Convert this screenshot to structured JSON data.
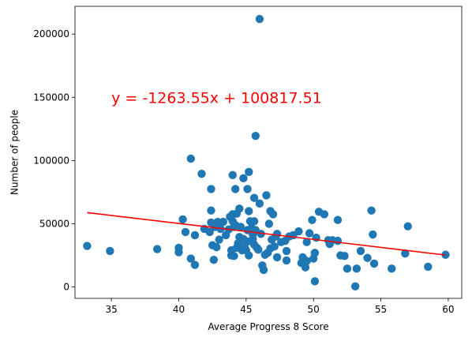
{
  "chart_data": {
    "type": "scatter",
    "xlabel": "Average Progress 8 Score",
    "ylabel": "Number of people",
    "xlim": [
      32.3,
      61.0
    ],
    "ylim": [
      -9000,
      222000
    ],
    "xticks": [
      35,
      40,
      45,
      50,
      55,
      60
    ],
    "yticks": [
      0,
      50000,
      100000,
      150000,
      200000
    ],
    "grid": false,
    "point_color": "#1f77b4",
    "regression": {
      "label": "y = -1263.55x + 100817.51",
      "slope": -1263.55,
      "intercept": 100817.51,
      "x_start": 33.2,
      "x_end": 59.8,
      "color": "#ff0000",
      "label_x": 35,
      "label_y": 150000
    },
    "points": [
      [
        33.2,
        32500
      ],
      [
        34.9,
        28500
      ],
      [
        38.4,
        30000
      ],
      [
        40.0,
        31000
      ],
      [
        40.0,
        27500
      ],
      [
        40.3,
        53500
      ],
      [
        40.5,
        43500
      ],
      [
        40.9,
        22500
      ],
      [
        40.9,
        101500
      ],
      [
        41.2,
        17500
      ],
      [
        41.2,
        41000
      ],
      [
        41.7,
        89500
      ],
      [
        41.9,
        46000
      ],
      [
        42.3,
        43500
      ],
      [
        42.4,
        51000
      ],
      [
        42.4,
        60500
      ],
      [
        42.4,
        77500
      ],
      [
        42.5,
        33000
      ],
      [
        42.6,
        21500
      ],
      [
        42.7,
        47500
      ],
      [
        42.8,
        31500
      ],
      [
        42.9,
        51500
      ],
      [
        43.0,
        37500
      ],
      [
        43.1,
        46000
      ],
      [
        43.3,
        51500
      ],
      [
        43.5,
        41000
      ],
      [
        43.7,
        45500
      ],
      [
        43.8,
        55500
      ],
      [
        43.9,
        29000
      ],
      [
        43.9,
        25000
      ],
      [
        44.0,
        88500
      ],
      [
        44.0,
        57500
      ],
      [
        44.0,
        52000
      ],
      [
        44.1,
        47500
      ],
      [
        44.1,
        24500
      ],
      [
        44.2,
        77500
      ],
      [
        44.2,
        49000
      ],
      [
        44.3,
        31000
      ],
      [
        44.3,
        58000
      ],
      [
        44.4,
        34500
      ],
      [
        44.5,
        62000
      ],
      [
        44.5,
        39500
      ],
      [
        44.6,
        36500
      ],
      [
        44.6,
        47500
      ],
      [
        44.7,
        29000
      ],
      [
        44.8,
        86000
      ],
      [
        44.8,
        38000
      ],
      [
        44.9,
        31000
      ],
      [
        45.0,
        29000
      ],
      [
        45.1,
        45000
      ],
      [
        45.1,
        36000
      ],
      [
        45.1,
        77500
      ],
      [
        45.2,
        91000
      ],
      [
        45.2,
        60000
      ],
      [
        45.2,
        25000
      ],
      [
        45.3,
        52000
      ],
      [
        45.4,
        46500
      ],
      [
        45.5,
        41500
      ],
      [
        45.5,
        38000
      ],
      [
        45.6,
        33500
      ],
      [
        45.6,
        52000
      ],
      [
        45.6,
        70500
      ],
      [
        45.7,
        45000
      ],
      [
        45.7,
        119500
      ],
      [
        45.8,
        31000
      ],
      [
        45.9,
        29500
      ],
      [
        46.0,
        212000
      ],
      [
        46.0,
        66000
      ],
      [
        46.1,
        42000
      ],
      [
        46.2,
        17000
      ],
      [
        46.3,
        13500
      ],
      [
        46.4,
        25500
      ],
      [
        46.5,
        72500
      ],
      [
        46.6,
        27000
      ],
      [
        46.7,
        50000
      ],
      [
        46.8,
        30500
      ],
      [
        46.8,
        60000
      ],
      [
        46.9,
        37500
      ],
      [
        47.0,
        57500
      ],
      [
        47.1,
        32000
      ],
      [
        47.2,
        40000
      ],
      [
        47.3,
        42000
      ],
      [
        47.3,
        23500
      ],
      [
        47.6,
        35500
      ],
      [
        47.9,
        36500
      ],
      [
        48.0,
        28500
      ],
      [
        48.0,
        21000
      ],
      [
        48.2,
        40000
      ],
      [
        48.5,
        41000
      ],
      [
        48.9,
        44000
      ],
      [
        49.1,
        19000
      ],
      [
        49.2,
        23500
      ],
      [
        49.4,
        15500
      ],
      [
        49.5,
        20500
      ],
      [
        49.5,
        35500
      ],
      [
        49.7,
        42500
      ],
      [
        49.9,
        53000
      ],
      [
        50.0,
        22500
      ],
      [
        50.1,
        4500
      ],
      [
        50.1,
        27000
      ],
      [
        50.2,
        39000
      ],
      [
        50.4,
        59500
      ],
      [
        50.8,
        57500
      ],
      [
        51.1,
        37000
      ],
      [
        51.2,
        34000
      ],
      [
        51.4,
        37000
      ],
      [
        51.8,
        36500
      ],
      [
        51.8,
        53000
      ],
      [
        52.0,
        25000
      ],
      [
        52.3,
        24500
      ],
      [
        52.5,
        14500
      ],
      [
        53.1,
        500
      ],
      [
        53.2,
        14500
      ],
      [
        53.5,
        28500
      ],
      [
        54.0,
        23000
      ],
      [
        54.3,
        60500
      ],
      [
        54.4,
        41500
      ],
      [
        54.5,
        18500
      ],
      [
        55.8,
        14500
      ],
      [
        56.8,
        26500
      ],
      [
        57.0,
        48000
      ],
      [
        58.5,
        16000
      ],
      [
        59.8,
        25500
      ]
    ]
  }
}
